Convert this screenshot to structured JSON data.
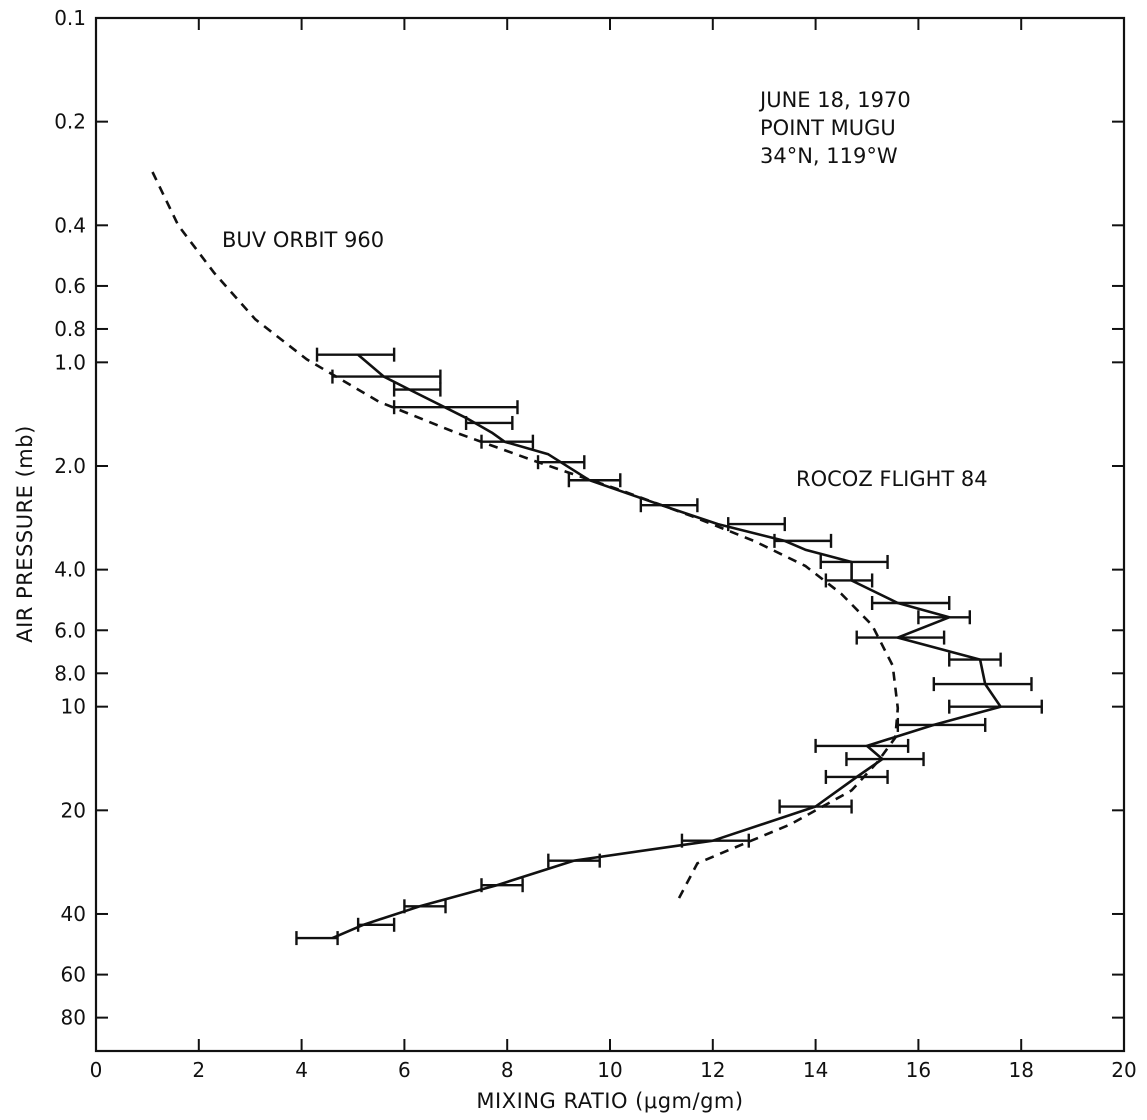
{
  "chart_data": {
    "type": "line",
    "xlabel": "MIXING RATIO (μgm/gm)",
    "ylabel": "AIR PRESSURE (mb)",
    "xlim": [
      0,
      20
    ],
    "ylim": [
      0.1,
      100
    ],
    "y_scale": "log",
    "y_inverted": true,
    "grid": false,
    "x_ticks": [
      0,
      2,
      4,
      6,
      8,
      10,
      12,
      14,
      16,
      18,
      20
    ],
    "y_ticks": [
      0.1,
      0.2,
      0.4,
      0.6,
      0.8,
      1.0,
      2.0,
      4.0,
      6.0,
      8.0,
      10,
      20,
      40,
      60,
      80
    ],
    "y_tick_labels": [
      "0.1",
      "0.2",
      "0.4",
      "0.6",
      "0.8",
      "1.0",
      "2.0",
      "4.0",
      "6.0",
      "8.0",
      "10",
      "20",
      "40",
      "60",
      "80"
    ],
    "annotations": {
      "date": "JUNE 18, 1970",
      "site": "POINT MUGU",
      "coords": "34°N, 119°W"
    },
    "series": [
      {
        "name": "BUV ORBIT 960",
        "style": "dashed",
        "x": [
          1.1,
          1.6,
          2.3,
          3.1,
          4.1,
          5.5,
          7.0,
          8.6,
          10.2,
          11.6,
          12.8,
          13.8,
          14.5,
          15.1,
          15.5,
          15.6,
          15.55,
          15.2,
          14.7,
          13.5,
          12.2,
          11.7,
          11.3
        ],
        "y": [
          0.28,
          0.4,
          0.55,
          0.75,
          0.98,
          1.3,
          1.6,
          1.95,
          2.35,
          2.8,
          3.3,
          3.9,
          4.7,
          5.8,
          7.6,
          10.1,
          12.3,
          14.5,
          17.5,
          22,
          26.5,
          28.5,
          37
        ]
      },
      {
        "name": "ROCOZ FLIGHT 84",
        "style": "solid",
        "x": [
          5.1,
          5.6,
          6.1,
          7.2,
          7.7,
          7.95,
          8.8,
          9.6,
          11.0,
          12.1,
          13.4,
          13.8,
          14.7,
          14.7,
          15.6,
          16.6,
          15.6,
          17.2,
          17.3,
          17.6,
          16.3,
          15.0,
          15.3,
          14.8,
          14.0,
          12.0,
          9.3,
          7.8,
          6.3,
          5.2,
          4.6
        ],
        "y": [
          0.95,
          1.1,
          1.2,
          1.45,
          1.6,
          1.7,
          1.85,
          2.2,
          2.6,
          2.95,
          3.3,
          3.5,
          3.8,
          4.3,
          5.0,
          5.5,
          6.3,
          7.3,
          8.6,
          10,
          11.3,
          13.0,
          14.2,
          16.0,
          19.5,
          24.5,
          28.0,
          33.0,
          38.0,
          43.0,
          47.0
        ]
      }
    ],
    "error_bars": [
      {
        "y": 0.95,
        "xmin": 4.3,
        "xmax": 5.8
      },
      {
        "y": 1.1,
        "xmin": 4.6,
        "xmax": 6.7
      },
      {
        "y": 1.2,
        "xmin": 5.8,
        "xmax": 6.7
      },
      {
        "y": 1.35,
        "xmin": 5.8,
        "xmax": 8.2
      },
      {
        "y": 1.5,
        "xmin": 7.2,
        "xmax": 8.1
      },
      {
        "y": 1.7,
        "xmin": 7.5,
        "xmax": 8.5
      },
      {
        "y": 1.95,
        "xmin": 8.6,
        "xmax": 9.5
      },
      {
        "y": 2.2,
        "xmin": 9.2,
        "xmax": 10.2
      },
      {
        "y": 2.6,
        "xmin": 10.6,
        "xmax": 11.7
      },
      {
        "y": 2.95,
        "xmin": 12.3,
        "xmax": 13.4
      },
      {
        "y": 3.3,
        "xmin": 13.2,
        "xmax": 14.3
      },
      {
        "y": 3.8,
        "xmin": 14.1,
        "xmax": 15.4
      },
      {
        "y": 4.3,
        "xmin": 14.2,
        "xmax": 15.1
      },
      {
        "y": 5.0,
        "xmin": 15.1,
        "xmax": 16.6
      },
      {
        "y": 5.5,
        "xmin": 16.0,
        "xmax": 17.0
      },
      {
        "y": 6.3,
        "xmin": 14.8,
        "xmax": 16.5
      },
      {
        "y": 7.3,
        "xmin": 16.6,
        "xmax": 17.6
      },
      {
        "y": 8.6,
        "xmin": 16.3,
        "xmax": 18.2
      },
      {
        "y": 10,
        "xmin": 16.6,
        "xmax": 18.4
      },
      {
        "y": 11.3,
        "xmin": 15.6,
        "xmax": 17.3
      },
      {
        "y": 13.0,
        "xmin": 14.0,
        "xmax": 15.8
      },
      {
        "y": 14.2,
        "xmin": 14.6,
        "xmax": 16.1
      },
      {
        "y": 16.0,
        "xmin": 14.2,
        "xmax": 15.4
      },
      {
        "y": 19.5,
        "xmin": 13.3,
        "xmax": 14.7
      },
      {
        "y": 24.5,
        "xmin": 11.4,
        "xmax": 12.7
      },
      {
        "y": 28.0,
        "xmin": 8.8,
        "xmax": 9.8
      },
      {
        "y": 33.0,
        "xmin": 7.5,
        "xmax": 8.3
      },
      {
        "y": 38.0,
        "xmin": 6.0,
        "xmax": 6.8
      },
      {
        "y": 43.0,
        "xmin": 5.1,
        "xmax": 5.8
      },
      {
        "y": 47.0,
        "xmin": 3.9,
        "xmax": 4.7
      }
    ]
  }
}
